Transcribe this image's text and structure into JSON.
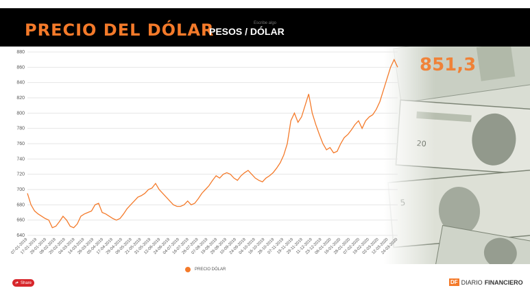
{
  "header": {
    "title": "PRECIO DEL DÓLAR",
    "subtitle": "PESOS / DÓLAR",
    "hint": "Escribe algo"
  },
  "current_value": "851,3",
  "legend": {
    "label": "PRECIO DÓLAR"
  },
  "share": {
    "label": "Share",
    "icon": "share-icon"
  },
  "brand": {
    "badge": "DF",
    "name_part1": "DIARIO",
    "name_part2": "FINANCIERO"
  },
  "colors": {
    "accent": "#f47a2a",
    "header_bg": "#000000",
    "share": "#d7262b"
  },
  "chart_data": {
    "type": "line",
    "title": "",
    "xlabel": "",
    "ylabel": "",
    "ylim": [
      640,
      880
    ],
    "yticks": [
      640,
      660,
      680,
      700,
      720,
      740,
      760,
      780,
      800,
      820,
      840,
      860,
      880
    ],
    "grid": true,
    "legend_position": "bottom",
    "x_tick_labels": [
      "07-01-2019",
      "17-01-2019",
      "29-01-2019",
      "08-02-2019",
      "20-02-2019",
      "04-03-2019",
      "14-03-2019",
      "26-03-2019",
      "05-04-2019",
      "17-04-2019",
      "29-04-2019",
      "09-05-2019",
      "21-05-2019",
      "31-05-2019",
      "12-06-2019",
      "24-06-2019",
      "04-07-2019",
      "16-07-2019",
      "26-07-2019",
      "07-08-2019",
      "19-08-2019",
      "29-08-2019",
      "10-09-2019",
      "24-09-2019",
      "04-10-2019",
      "16-10-2019",
      "28-10-2019",
      "07-11-2019",
      "19-11-2019",
      "29-11-2019",
      "11-12-2019",
      "23-12-2019",
      "06-01-2020",
      "16-01-2020",
      "28-01-2020",
      "07-02-2020",
      "19-02-2020",
      "02-03-2020",
      "12-03-2020",
      "24-03-2020"
    ],
    "series": [
      {
        "name": "PRECIO DÓLAR",
        "values": [
          695,
          680,
          672,
          668,
          665,
          662,
          660,
          650,
          652,
          658,
          665,
          660,
          652,
          650,
          655,
          665,
          668,
          670,
          672,
          680,
          682,
          670,
          668,
          665,
          662,
          660,
          662,
          668,
          675,
          680,
          685,
          690,
          692,
          695,
          700,
          702,
          708,
          700,
          695,
          690,
          685,
          680,
          678,
          678,
          680,
          685,
          680,
          682,
          688,
          695,
          700,
          705,
          712,
          718,
          715,
          720,
          722,
          720,
          715,
          712,
          718,
          722,
          725,
          720,
          715,
          712,
          710,
          715,
          718,
          722,
          728,
          735,
          745,
          760,
          790,
          800,
          788,
          795,
          810,
          825,
          800,
          785,
          772,
          760,
          752,
          755,
          748,
          750,
          760,
          768,
          772,
          778,
          785,
          790,
          780,
          790,
          795,
          798,
          805,
          815,
          830,
          845,
          860,
          870,
          860
        ]
      }
    ]
  }
}
